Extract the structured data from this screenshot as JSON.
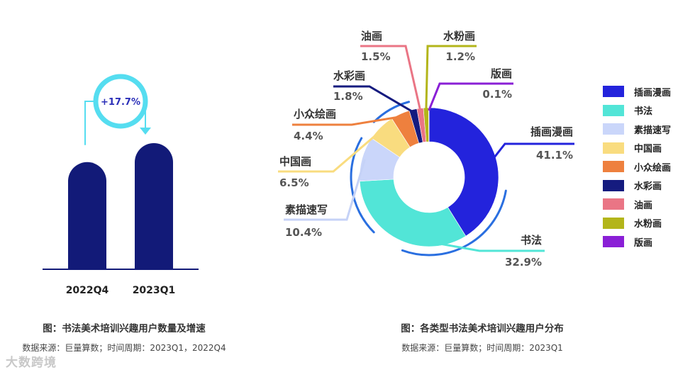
{
  "chart_data": [
    {
      "type": "bar",
      "categories": [
        "2022Q4",
        "2023Q1"
      ],
      "values": [
        100,
        117.7
      ],
      "annotation": "+17.7%",
      "colors": {
        "bar": "#121a78",
        "growth": "#55ddf0",
        "axis": "#121a78"
      },
      "title": "图：书法美术培训兴趣用户数量及增速",
      "source": "数据来源：巨量算数；时间周期：2023Q1，2022Q4"
    },
    {
      "type": "pie",
      "donut": true,
      "slices": [
        {
          "label": "插画漫画",
          "value": 41.1,
          "display": "41.1%",
          "color": "#2323dc"
        },
        {
          "label": "书法",
          "value": 32.9,
          "display": "32.9%",
          "color": "#52e5d7"
        },
        {
          "label": "素描速写",
          "value": 10.4,
          "display": "10.4%",
          "color": "#cad6fa"
        },
        {
          "label": "中国画",
          "value": 6.5,
          "display": "6.5%",
          "color": "#f9dc7f"
        },
        {
          "label": "小众绘画",
          "value": 4.4,
          "display": "4.4%",
          "color": "#ee803e"
        },
        {
          "label": "水彩画",
          "value": 1.8,
          "display": "1.8%",
          "color": "#151b7f"
        },
        {
          "label": "油画",
          "value": 1.5,
          "display": "1.5%",
          "color": "#ea7585"
        },
        {
          "label": "水粉画",
          "value": 1.2,
          "display": "1.2%",
          "color": "#b3b51a"
        },
        {
          "label": "版画",
          "value": 0.1,
          "display": "0.1%",
          "color": "#8a1fd6"
        }
      ],
      "legend_position": "right",
      "accent_ring_color": "#2a6fe0",
      "title": "图：各类型书法美术培训兴趣用户分布",
      "source": "数据来源：巨量算数；时间周期：2023Q1"
    }
  ],
  "watermark": "大数跨境"
}
